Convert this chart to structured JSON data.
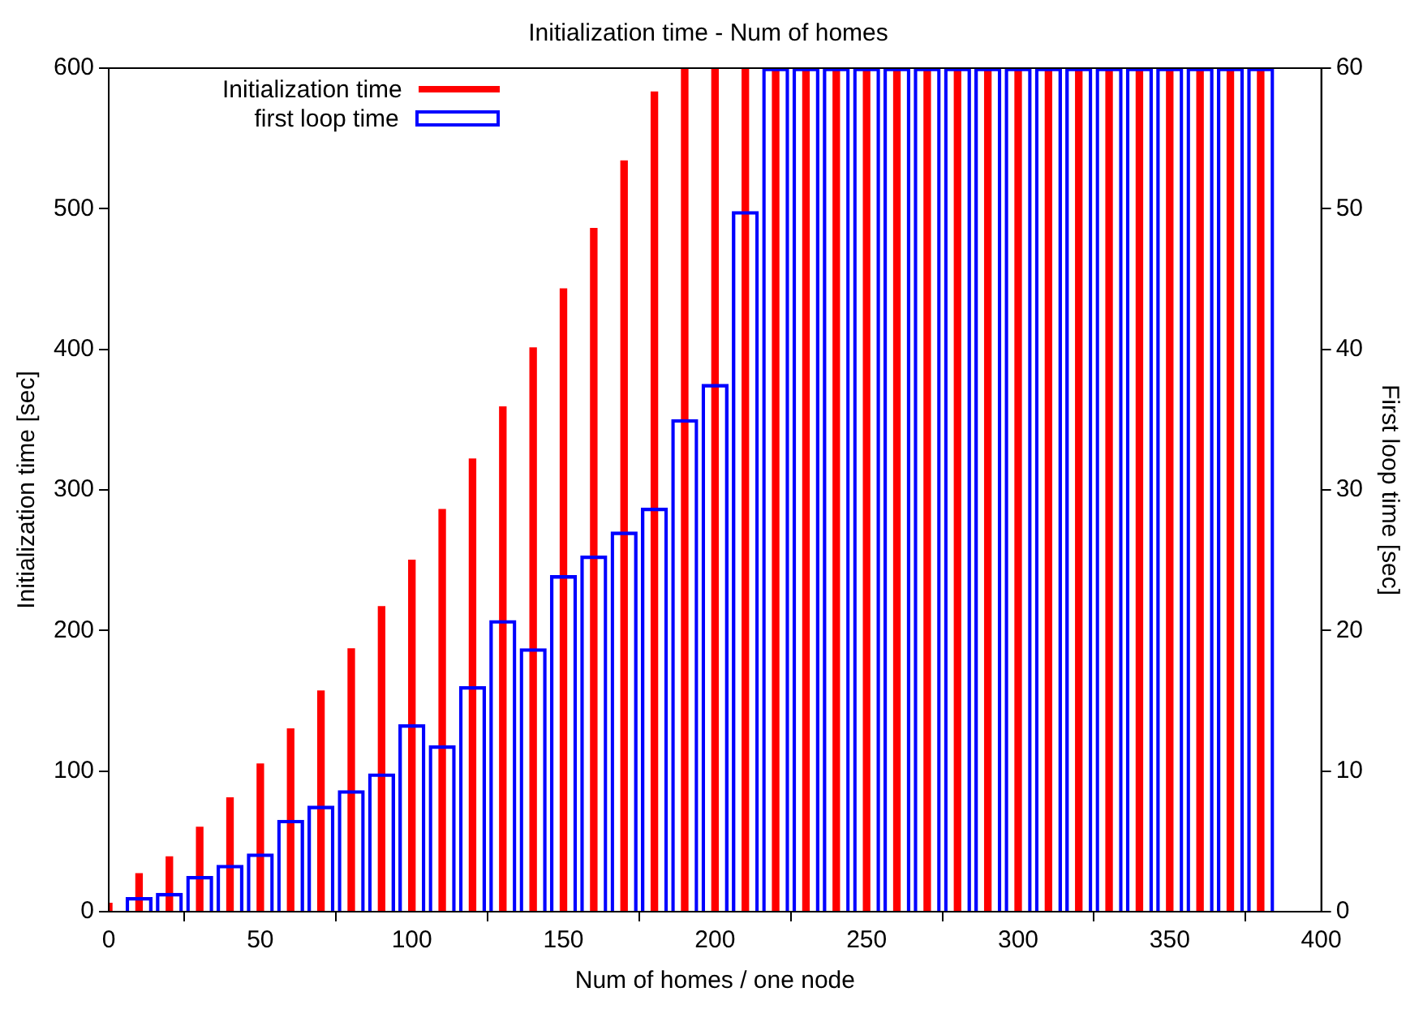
{
  "chart_data": {
    "type": "bar",
    "title": "Initialization time - Num of homes",
    "xlabel": "Num of homes / one node",
    "ylabel": "Initialization time [sec]",
    "y2label": "First loop time [sec]",
    "xlim": [
      0,
      400
    ],
    "xticks": [
      0,
      50,
      100,
      150,
      200,
      250,
      300,
      350,
      400
    ],
    "ylim": [
      0,
      600
    ],
    "yticks": [
      0,
      100,
      200,
      300,
      400,
      500,
      600
    ],
    "y2lim": [
      0,
      60
    ],
    "y2ticks": [
      0,
      10,
      20,
      30,
      40,
      50,
      60
    ],
    "legend": "top left",
    "grid": false,
    "series": [
      {
        "name": "Initialization time",
        "color": "#ff0000",
        "x": [
          0,
          10,
          20,
          30,
          40,
          50,
          60,
          70,
          80,
          90,
          100,
          110,
          120,
          130,
          140,
          150,
          160,
          170,
          180,
          190,
          200,
          210,
          220,
          230,
          240,
          250,
          260,
          270,
          280,
          290,
          300,
          310,
          320,
          330,
          340,
          350,
          360,
          370,
          380
        ],
        "values": [
          6,
          27,
          39,
          60,
          81,
          105,
          130,
          157,
          187,
          217,
          250,
          286,
          322,
          359,
          401,
          443,
          486,
          534,
          583,
          600,
          600,
          600,
          600,
          600,
          600,
          600,
          600,
          600,
          600,
          600,
          600,
          600,
          600,
          600,
          600,
          600,
          600,
          600,
          600
        ]
      },
      {
        "name": "first loop time",
        "axis": "y2",
        "color": "#0000ff",
        "x": [
          10,
          20,
          30,
          40,
          50,
          60,
          70,
          80,
          90,
          100,
          110,
          120,
          130,
          140,
          150,
          160,
          170,
          180,
          190,
          200,
          210,
          220,
          230,
          240,
          250,
          260,
          270,
          280,
          290,
          300,
          310,
          320,
          330,
          340,
          350,
          360,
          370,
          380
        ],
        "values": [
          1,
          1.3,
          2.5,
          3.3,
          4.1,
          6.5,
          7.5,
          8.6,
          9.8,
          13.3,
          11.8,
          16,
          20.7,
          18.7,
          23.9,
          25.3,
          27,
          28.7,
          35,
          37.5,
          49.8,
          60,
          60,
          60,
          60,
          60,
          60,
          60,
          60,
          60,
          60,
          60,
          60,
          60,
          60,
          60,
          60,
          60
        ]
      }
    ]
  }
}
